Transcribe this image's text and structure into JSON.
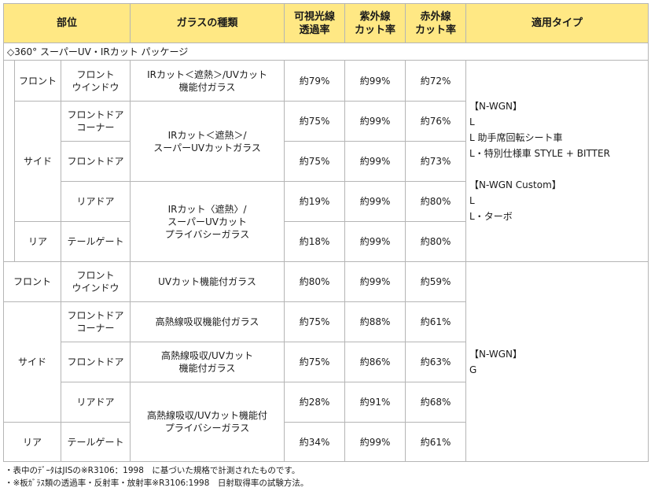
{
  "header": {
    "part": "部位",
    "glass_type": "ガラスの種類",
    "visible_light": [
      "可視光線",
      "透過率"
    ],
    "uv_cut": [
      "紫外線",
      "カット率"
    ],
    "ir_cut": [
      "赤外線",
      "カット率"
    ],
    "applicable": "適用タイプ"
  },
  "package_title": "◇360° スーパーUV・IRカット パッケージ",
  "package_rows": [
    {
      "area": "フロント",
      "position": [
        "フロント",
        "ウインドウ"
      ],
      "glass": [
        "IRカット＜遮熱＞/UVカット",
        "機能付ガラス"
      ],
      "vis": "約79%",
      "uv": "約99%",
      "ir": "約72%"
    },
    {
      "area": "サイド",
      "position": [
        "フロントドア",
        "コーナー"
      ],
      "glass": [
        "IRカット＜遮熱＞/",
        "スーパーUVカットガラス"
      ],
      "vis": "約75%",
      "uv": "約99%",
      "ir": "約76%"
    },
    {
      "area": "",
      "position": [
        "フロントドア"
      ],
      "glass": [],
      "vis": "約75%",
      "uv": "約99%",
      "ir": "約73%"
    },
    {
      "area": "",
      "position": [
        "リアドア"
      ],
      "glass": [
        "IRカット〈遮熱〉/",
        "スーパーUVカット",
        "プライバシーガラス"
      ],
      "vis": "約19%",
      "uv": "約99%",
      "ir": "約80%"
    },
    {
      "area": "リア",
      "position": [
        "テールゲート"
      ],
      "glass": [],
      "vis": "約18%",
      "uv": "約99%",
      "ir": "約80%"
    }
  ],
  "package_types": [
    "【N-WGN】",
    "L",
    "L 助手席回転シート車",
    "L・特別仕様車 STYLE + BITTER",
    "",
    "【N-WGN Custom】",
    "L",
    "L・ターボ"
  ],
  "standard_rows": [
    {
      "area": "フロント",
      "position": [
        "フロント",
        "ウインドウ"
      ],
      "glass": [
        "UVカット機能付ガラス"
      ],
      "vis": "約80%",
      "uv": "約99%",
      "ir": "約59%"
    },
    {
      "area": "サイド",
      "position": [
        "フロントドア",
        "コーナー"
      ],
      "glass": [
        "高熱線吸収機能付ガラス"
      ],
      "vis": "約75%",
      "uv": "約88%",
      "ir": "約61%"
    },
    {
      "area": "",
      "position": [
        "フロントドア"
      ],
      "glass": [
        "高熱線吸収/UVカット",
        "機能付ガラス"
      ],
      "vis": "約75%",
      "uv": "約86%",
      "ir": "約63%"
    },
    {
      "area": "",
      "position": [
        "リアドア"
      ],
      "glass": [
        "高熱線吸収/UVカット機能付",
        "プライバシーガラス"
      ],
      "vis": "約28%",
      "uv": "約91%",
      "ir": "約68%"
    },
    {
      "area": "リア",
      "position": [
        "テールゲート"
      ],
      "glass": [],
      "vis": "約34%",
      "uv": "約99%",
      "ir": "約61%"
    }
  ],
  "standard_types": [
    "【N-WGN】",
    "G"
  ],
  "notes": [
    "・表中のﾃﾞｰﾀはJISの※R3106：1998　に基づいた規格で計測されたものです。",
    "・※板ｶﾞﾗｽ類の透過率・反射率・放射率※R3106:1998　日射取得率の試験方法。"
  ]
}
